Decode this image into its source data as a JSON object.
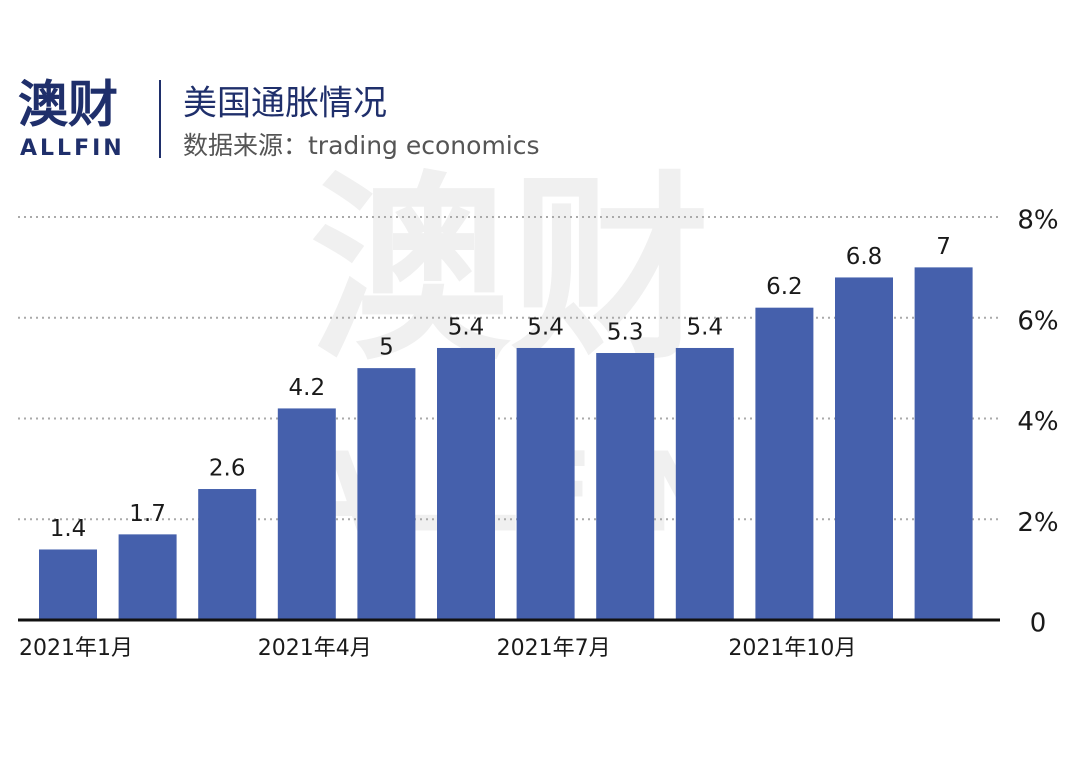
{
  "logo": {
    "name": "澳财",
    "brand": "ALLFIN"
  },
  "chart_data": {
    "type": "bar",
    "title": "美国通胀情况",
    "subtitle": "数据来源：trading economics",
    "categories": [
      "2021年1月",
      null,
      null,
      "2021年4月",
      null,
      null,
      "2021年7月",
      null,
      null,
      "2021年10月",
      null,
      null
    ],
    "values": [
      1.4,
      1.7,
      2.6,
      4.2,
      5,
      5.4,
      5.4,
      5.3,
      5.4,
      6.2,
      6.8,
      7
    ],
    "color": "#4560ac",
    "ylim": [
      0,
      8
    ],
    "yticks": [
      0,
      {
        "value": 2,
        "label": "2%"
      },
      {
        "value": 4,
        "label": "4%"
      },
      {
        "value": 6,
        "label": "6%"
      },
      {
        "value": 8,
        "label": "8%"
      }
    ],
    "grid": true
  }
}
